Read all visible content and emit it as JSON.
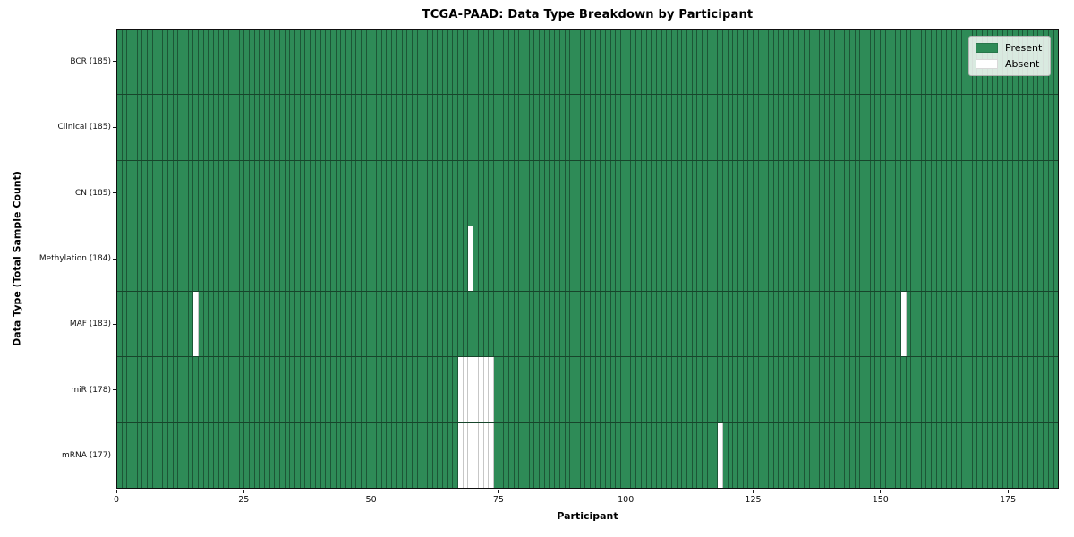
{
  "chart_data": {
    "type": "heatmap",
    "title": "TCGA-PAAD: Data Type Breakdown by Participant",
    "xlabel": "Participant",
    "ylabel": "Data Type (Total Sample Count)",
    "x_ticks": [
      0,
      25,
      50,
      75,
      100,
      125,
      150,
      175
    ],
    "x_range": [
      0,
      185
    ],
    "n_participants": 185,
    "grid": false,
    "colors": {
      "present": "#2e8b57",
      "absent": "#ffffff"
    },
    "legend": {
      "position": "upper right",
      "entries": [
        {
          "label": "Present",
          "color": "#2e8b57"
        },
        {
          "label": "Absent",
          "color": "#ffffff"
        }
      ]
    },
    "rows": [
      {
        "label": "BCR (185)",
        "data_type": "BCR",
        "total_samples": 185,
        "absent_participants": []
      },
      {
        "label": "Clinical (185)",
        "data_type": "Clinical",
        "total_samples": 185,
        "absent_participants": []
      },
      {
        "label": "CN (185)",
        "data_type": "CN",
        "total_samples": 185,
        "absent_participants": []
      },
      {
        "label": "Methylation (184)",
        "data_type": "Methylation",
        "total_samples": 184,
        "absent_participants": [
          69
        ]
      },
      {
        "label": "MAF (183)",
        "data_type": "MAF",
        "total_samples": 183,
        "absent_participants": [
          15,
          154
        ]
      },
      {
        "label": "miR (178)",
        "data_type": "miR",
        "total_samples": 178,
        "absent_participants": [
          67,
          68,
          69,
          70,
          71,
          72,
          73
        ]
      },
      {
        "label": "mRNA (177)",
        "data_type": "mRNA",
        "total_samples": 177,
        "absent_participants": [
          67,
          68,
          69,
          70,
          71,
          72,
          73,
          118
        ]
      }
    ]
  }
}
